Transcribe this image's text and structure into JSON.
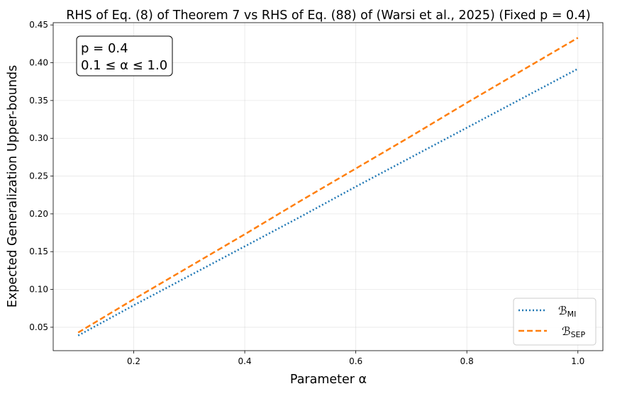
{
  "chart_data": {
    "type": "line",
    "title": "RHS of Eq. (8) of Theorem 7 vs RHS of Eq. (88) of (Warsi et al., 2025) (Fixed p = 0.4)",
    "xlabel": "Parameter α",
    "ylabel": "Expected Generalization Upper-bounds",
    "xlim": [
      0.055,
      1.045
    ],
    "ylim": [
      0.019,
      0.453
    ],
    "xticks": [
      "0.2",
      "0.4",
      "0.6",
      "0.8",
      "1.0"
    ],
    "xtick_values": [
      0.2,
      0.4,
      0.6,
      0.8,
      1.0
    ],
    "yticks": [
      "0.05",
      "0.10",
      "0.15",
      "0.20",
      "0.25",
      "0.30",
      "0.35",
      "0.40",
      "0.45"
    ],
    "ytick_values": [
      0.05,
      0.1,
      0.15,
      0.2,
      0.25,
      0.3,
      0.35,
      0.4,
      0.45
    ],
    "grid": true,
    "annotation": {
      "line1": "p = 0.4",
      "line2": "0.1 ≤ α ≤ 1.0",
      "placement": "top-left"
    },
    "legend_placement": "bottom-right",
    "series": [
      {
        "name": "B_MI",
        "legend_main": "ℬ",
        "legend_sub": "MI",
        "style": "dotted",
        "color": "#1f77b4",
        "x": [
          0.1,
          0.2,
          0.3,
          0.4,
          0.5,
          0.6,
          0.7,
          0.8,
          0.9,
          1.0
        ],
        "y": [
          0.039,
          0.079,
          0.118,
          0.157,
          0.196,
          0.236,
          0.275,
          0.314,
          0.353,
          0.392
        ]
      },
      {
        "name": "B_SEP",
        "legend_main": "ℬ",
        "legend_sub": "SEP",
        "style": "dashed",
        "color": "#ff7f0e",
        "x": [
          0.1,
          0.2,
          0.3,
          0.4,
          0.5,
          0.6,
          0.7,
          0.8,
          0.9,
          1.0
        ],
        "y": [
          0.043,
          0.087,
          0.13,
          0.173,
          0.217,
          0.26,
          0.303,
          0.347,
          0.39,
          0.433
        ]
      }
    ]
  }
}
